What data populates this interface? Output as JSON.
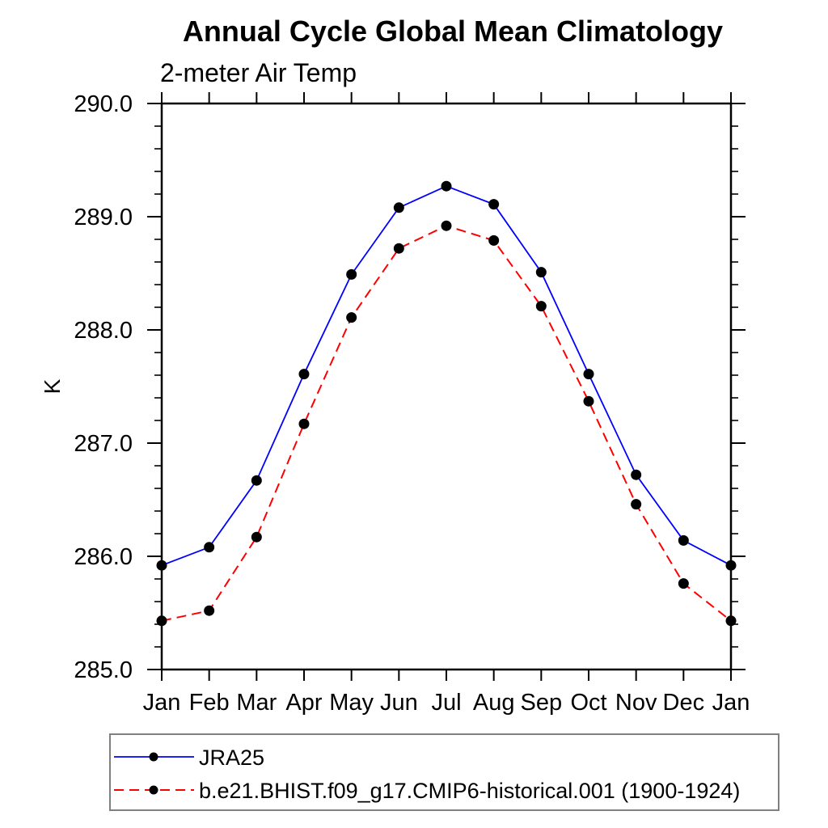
{
  "chart_data": {
    "type": "line",
    "title": "Annual Cycle Global Mean Climatology",
    "subtitle": "2-meter Air Temp",
    "ylabel": "K",
    "xlabel": "",
    "categories": [
      "Jan",
      "Feb",
      "Mar",
      "Apr",
      "May",
      "Jun",
      "Jul",
      "Aug",
      "Sep",
      "Oct",
      "Nov",
      "Dec",
      "Jan"
    ],
    "ylim": [
      285.0,
      290.0
    ],
    "ytick_major_interval": 1.0,
    "ytick_minor_interval": 0.2,
    "ytick_labels": [
      "285.0",
      "286.0",
      "287.0",
      "288.0",
      "289.0",
      "290.0"
    ],
    "grid": false,
    "legend_position": "bottom-left-outside-box",
    "axis_color": "#000000",
    "legend_border_color": "#808080",
    "series": [
      {
        "name": "JRA25",
        "color": "#0000ff",
        "line_style": "solid",
        "marker": "filled-circle",
        "marker_color": "#000000",
        "values": [
          285.92,
          286.08,
          286.67,
          287.61,
          288.49,
          289.08,
          289.27,
          289.11,
          288.51,
          287.61,
          286.72,
          286.14,
          285.92
        ]
      },
      {
        "name": "b.e21.BHIST.f09_g17.CMIP6-historical.001 (1900-1924)",
        "color": "#ff0000",
        "line_style": "dashed",
        "marker": "filled-circle",
        "marker_color": "#000000",
        "values": [
          285.43,
          285.52,
          286.17,
          287.17,
          288.11,
          288.72,
          288.92,
          288.79,
          288.21,
          287.37,
          286.46,
          285.76,
          285.43
        ]
      }
    ]
  }
}
